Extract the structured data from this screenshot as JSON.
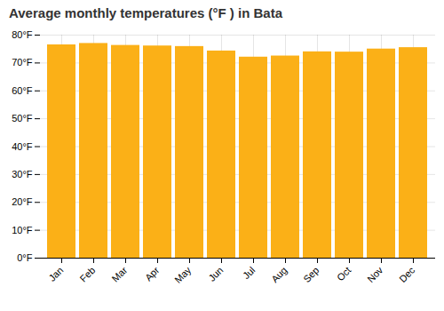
{
  "chart_data": {
    "type": "bar",
    "title": "Average monthly temperatures (°F ) in Bata",
    "categories": [
      "Jan",
      "Feb",
      "Mar",
      "Apr",
      "May",
      "Jun",
      "Jul",
      "Aug",
      "Sep",
      "Oct",
      "Nov",
      "Dec"
    ],
    "values": [
      76.5,
      77.0,
      76.3,
      76.1,
      75.9,
      74.3,
      72.1,
      72.5,
      74.0,
      73.9,
      75.0,
      75.5
    ],
    "color": "#FBB017",
    "ylim": [
      0,
      80
    ],
    "yticks": [
      {
        "value": 0,
        "label": "0°F"
      },
      {
        "value": 10,
        "label": "10°F"
      },
      {
        "value": 20,
        "label": "20°F"
      },
      {
        "value": 30,
        "label": "30°F"
      },
      {
        "value": 40,
        "label": "40°F"
      },
      {
        "value": 50,
        "label": "50°F"
      },
      {
        "value": 60,
        "label": "60°F"
      },
      {
        "value": 70,
        "label": "70°F"
      },
      {
        "value": 80,
        "label": "80°F"
      }
    ],
    "grid": true
  }
}
